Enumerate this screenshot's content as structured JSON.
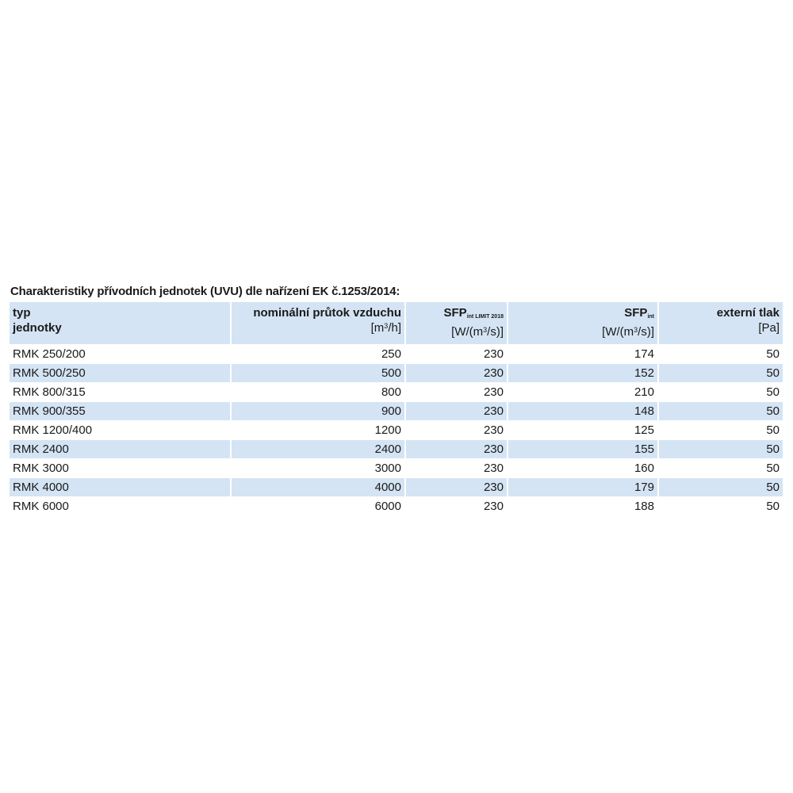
{
  "title": "Charakteristiky přívodních jednotek (UVU) dle nařízení EK č.1253/2014:",
  "headers": [
    {
      "line1": "typ",
      "line2": "jednotky"
    },
    {
      "line1": "nominální průtok vzduchu",
      "unit_pre": "[m",
      "unit_sup": "3",
      "unit_post": "/h]"
    },
    {
      "line1": "SFP",
      "line1_sub": "int LIMIT 2018",
      "unit_pre": "[W/(m",
      "unit_sup": "3",
      "unit_post": "/s)]"
    },
    {
      "line1": "SFP",
      "line1_sub": "int",
      "unit_pre": "[W/(m",
      "unit_sup": "3",
      "unit_post": "/s)]"
    },
    {
      "line1": "externí tlak",
      "unit_pre": "[Pa]"
    }
  ],
  "rows": [
    [
      "RMK 250/200",
      "250",
      "230",
      "174",
      "50"
    ],
    [
      "RMK 500/250",
      "500",
      "230",
      "152",
      "50"
    ],
    [
      "RMK 800/315",
      "800",
      "230",
      "210",
      "50"
    ],
    [
      "RMK 900/355",
      "900",
      "230",
      "148",
      "50"
    ],
    [
      "RMK 1200/400",
      "1200",
      "230",
      "125",
      "50"
    ],
    [
      "RMK 2400",
      "2400",
      "230",
      "155",
      "50"
    ],
    [
      "RMK 3000",
      "3000",
      "230",
      "160",
      "50"
    ],
    [
      "RMK 4000",
      "4000",
      "230",
      "179",
      "50"
    ],
    [
      "RMK 6000",
      "6000",
      "230",
      "188",
      "50"
    ]
  ],
  "colors": {
    "band": "#d4e4f4"
  }
}
